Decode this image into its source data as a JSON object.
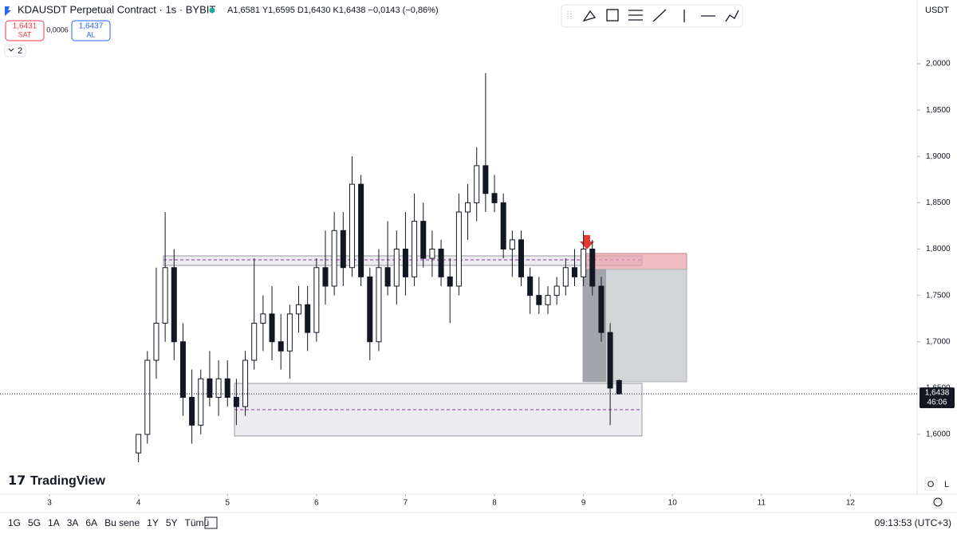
{
  "header": {
    "symbol": "KDAUSDT Perpetual Contract · 1s · BYBIT",
    "ohlc": "A1,6581 Y1,6595 D1,6430 K1,6438 −0,0143 (−0,86%)",
    "sell_price": "1,6431",
    "sell_label": "SAT",
    "spread": "0,0006",
    "buy_price": "1,6437",
    "buy_label": "AL",
    "indicators": "2",
    "currency": "USDT"
  },
  "footer": {
    "ranges": [
      "1G",
      "5G",
      "1A",
      "3A",
      "6A",
      "Bu sene",
      "1Y",
      "5Y",
      "Tümü"
    ],
    "clock": "09:13:53 (UTC+3)",
    "logo": "TradingView",
    "o": "O",
    "l": "L"
  },
  "chart_data": {
    "type": "candlestick",
    "x": [
      4.0,
      4.1,
      4.2,
      4.3,
      4.4,
      4.5,
      4.6,
      4.7,
      4.8,
      4.9,
      5.0,
      5.1,
      5.2,
      5.3,
      5.4,
      5.5,
      5.6,
      5.7,
      5.8,
      5.9,
      6.0,
      6.1,
      6.2,
      6.3,
      6.4,
      6.5,
      6.6,
      6.7,
      6.8,
      6.9,
      7.0,
      7.1,
      7.2,
      7.3,
      7.4,
      7.5,
      7.6,
      7.7,
      7.8,
      7.9,
      8.0,
      8.1,
      8.2,
      8.3,
      8.4,
      8.5,
      8.6,
      8.7,
      8.8,
      8.9,
      9.0,
      9.1,
      9.2,
      9.3,
      9.4
    ],
    "open": [
      1.58,
      1.6,
      1.68,
      1.72,
      1.78,
      1.7,
      1.64,
      1.61,
      1.66,
      1.64,
      1.66,
      1.64,
      1.63,
      1.68,
      1.72,
      1.73,
      1.7,
      1.69,
      1.73,
      1.74,
      1.71,
      1.78,
      1.76,
      1.82,
      1.78,
      1.87,
      1.77,
      1.7,
      1.78,
      1.76,
      1.8,
      1.77,
      1.83,
      1.79,
      1.8,
      1.77,
      1.76,
      1.84,
      1.85,
      1.89,
      1.86,
      1.85,
      1.8,
      1.81,
      1.77,
      1.75,
      1.74,
      1.75,
      1.76,
      1.78,
      1.77,
      1.8,
      1.76,
      1.71,
      1.6581
    ],
    "high": [
      1.6,
      1.69,
      1.78,
      1.84,
      1.8,
      1.72,
      1.67,
      1.67,
      1.69,
      1.68,
      1.68,
      1.66,
      1.69,
      1.79,
      1.75,
      1.76,
      1.73,
      1.74,
      1.76,
      1.76,
      1.79,
      1.82,
      1.84,
      1.84,
      1.9,
      1.88,
      1.78,
      1.8,
      1.83,
      1.82,
      1.84,
      1.86,
      1.85,
      1.82,
      1.81,
      1.79,
      1.86,
      1.87,
      1.91,
      1.99,
      1.88,
      1.86,
      1.82,
      1.82,
      1.78,
      1.77,
      1.76,
      1.77,
      1.79,
      1.8,
      1.82,
      1.81,
      1.77,
      1.72,
      1.6595
    ],
    "low": [
      1.57,
      1.59,
      1.66,
      1.7,
      1.68,
      1.62,
      1.59,
      1.6,
      1.63,
      1.62,
      1.63,
      1.61,
      1.62,
      1.67,
      1.69,
      1.68,
      1.67,
      1.66,
      1.71,
      1.69,
      1.7,
      1.74,
      1.75,
      1.76,
      1.77,
      1.76,
      1.68,
      1.69,
      1.75,
      1.74,
      1.75,
      1.76,
      1.78,
      1.77,
      1.76,
      1.72,
      1.75,
      1.81,
      1.83,
      1.84,
      1.84,
      1.79,
      1.77,
      1.76,
      1.73,
      1.73,
      1.73,
      1.74,
      1.75,
      1.76,
      1.76,
      1.75,
      1.7,
      1.61,
      1.643
    ],
    "close": [
      1.6,
      1.68,
      1.72,
      1.78,
      1.7,
      1.64,
      1.61,
      1.66,
      1.64,
      1.66,
      1.64,
      1.63,
      1.68,
      1.72,
      1.73,
      1.7,
      1.69,
      1.73,
      1.74,
      1.71,
      1.78,
      1.76,
      1.82,
      1.78,
      1.87,
      1.77,
      1.7,
      1.78,
      1.76,
      1.8,
      1.77,
      1.83,
      1.79,
      1.8,
      1.77,
      1.76,
      1.84,
      1.85,
      1.89,
      1.86,
      1.85,
      1.8,
      1.81,
      1.77,
      1.75,
      1.74,
      1.75,
      1.76,
      1.78,
      1.77,
      1.8,
      1.76,
      1.71,
      1.65,
      1.6438
    ],
    "xlim": [
      2.444,
      12.749
    ],
    "xticks": [
      3,
      4,
      5,
      6,
      7,
      8,
      9,
      10,
      11,
      12
    ],
    "ylim": [
      1.5355,
      2.0688
    ],
    "yticks": [
      {
        "value": 1.6,
        "label": "1,6000"
      },
      {
        "value": 1.65,
        "label": "1,6500"
      },
      {
        "value": 1.7,
        "label": "1,7000"
      },
      {
        "value": 1.75,
        "label": "1,7500"
      },
      {
        "value": 1.8,
        "label": "1,8000"
      },
      {
        "value": 1.85,
        "label": "1,8500"
      },
      {
        "value": 1.9,
        "label": "1,9000"
      },
      {
        "value": 1.95,
        "label": "1,9500"
      },
      {
        "value": 2.0,
        "label": "2,0000"
      }
    ],
    "current_price": {
      "value": 1.6438,
      "label": "1,6438"
    },
    "countdown": "46:06",
    "up_color": "#ffffff",
    "down_color": "#131722"
  }
}
